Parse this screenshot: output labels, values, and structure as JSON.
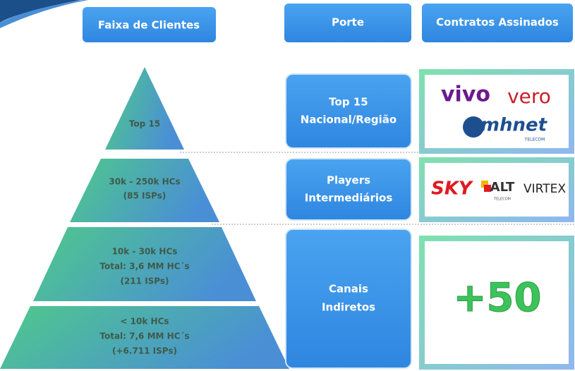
{
  "headers": {
    "tiers": "Faixa de Clientes",
    "porte": "Porte",
    "contracts": "Contratos Assinados"
  },
  "tiers": [
    {
      "lines": [
        "Top 15"
      ]
    },
    {
      "lines": [
        "30k  - 250k HCs",
        "(85 ISPs)"
      ]
    },
    {
      "lines": [
        "10k  - 30k HCs",
        "Total: 3,6 MM HC´s",
        "(211 ISPs)"
      ]
    },
    {
      "lines": [
        "< 10k  HCs",
        "Total: 7,6 MM HC´s",
        "(+6.711 ISPs)"
      ]
    }
  ],
  "porte": [
    {
      "lines": [
        "Top 15",
        "Nacional/Região"
      ]
    },
    {
      "lines": [
        "Players",
        "Intermediários"
      ]
    },
    {
      "lines": [
        "Canais",
        "Indiretos"
      ]
    }
  ],
  "contracts": [
    {
      "logos": [
        "vivo",
        "vero",
        "mhnet",
        "TELECOM"
      ]
    },
    {
      "logos": [
        "SKY",
        "ALT",
        "TELECOM",
        "VIRTEX"
      ]
    },
    {
      "text": "+50"
    }
  ]
}
